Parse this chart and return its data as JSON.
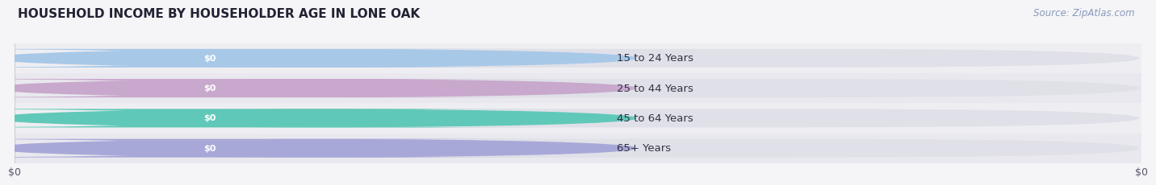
{
  "title": "HOUSEHOLD INCOME BY HOUSEHOLDER AGE IN LONE OAK",
  "source": "Source: ZipAtlas.com",
  "categories": [
    "15 to 24 Years",
    "25 to 44 Years",
    "45 to 64 Years",
    "65+ Years"
  ],
  "values": [
    0,
    0,
    0,
    0
  ],
  "bar_colors": [
    "#a8c8e8",
    "#c8a8cc",
    "#60c8b8",
    "#a8a8d8"
  ],
  "value_labels": [
    "$0",
    "$0",
    "$0",
    "$0"
  ],
  "xlim": [
    0,
    1
  ],
  "fig_bg_color": "#f5f5f7",
  "bar_bg_color": "#e0e0e8",
  "bar_white_color": "#f8f8fa",
  "row_bg_even": "#eeeeF2",
  "row_bg_odd": "#e8e8ee",
  "title_fontsize": 11,
  "source_fontsize": 8.5,
  "label_fontsize": 9.5,
  "tick_fontsize": 9,
  "xtick_labels": [
    "$0",
    "$0"
  ],
  "xtick_positions": [
    0.0,
    1.0
  ]
}
